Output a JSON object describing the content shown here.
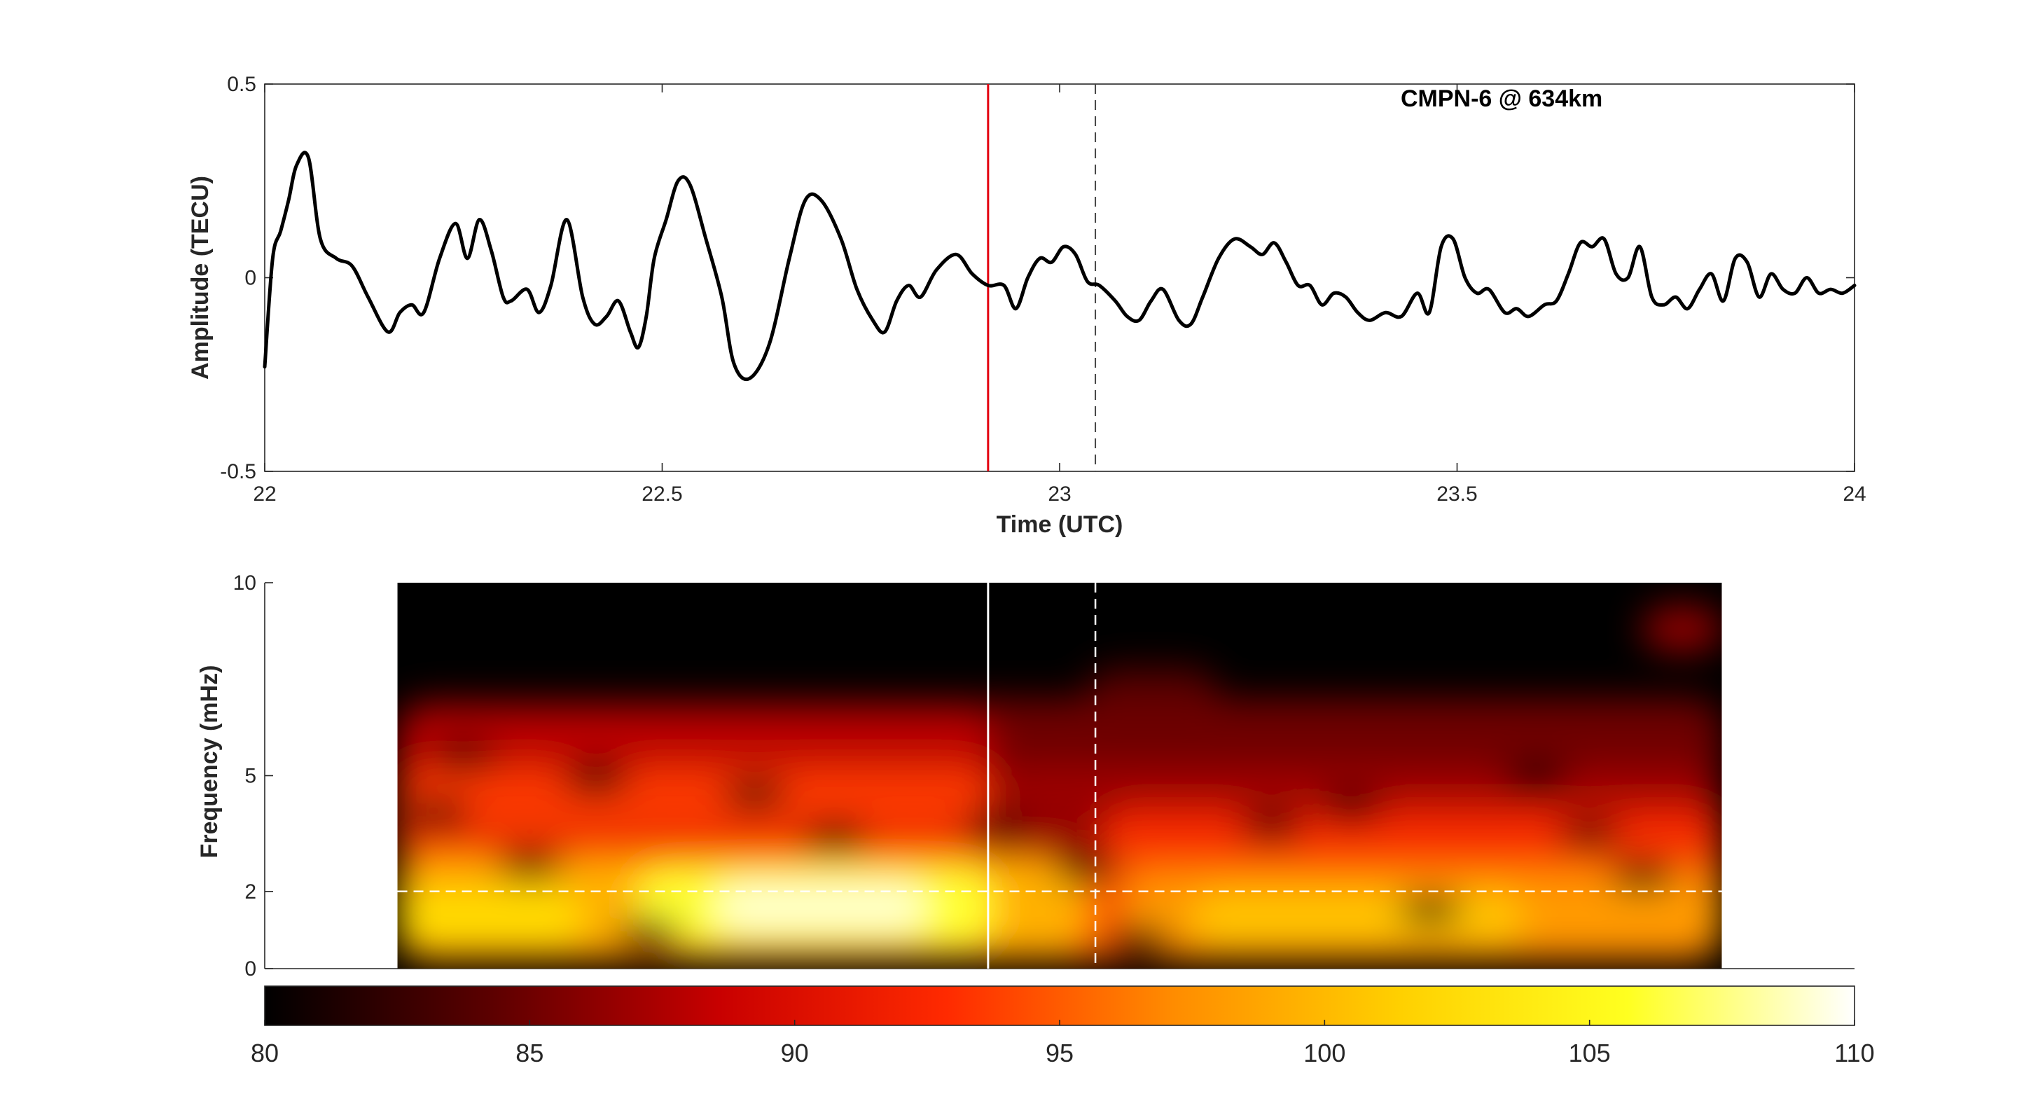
{
  "chart_data": [
    {
      "type": "line",
      "title": "",
      "annotation": "CMPN-6 @  634km",
      "xlabel": "Time (UTC)",
      "ylabel": "Amplitude (TECU)",
      "xlim": [
        22,
        24
      ],
      "ylim": [
        -0.5,
        0.5
      ],
      "xticks": [
        "22",
        "22.5",
        "23",
        "23.5",
        "24"
      ],
      "yticks": [
        "-0.5",
        "0",
        "0.5"
      ],
      "grid": false,
      "series": [
        {
          "color": "#000000",
          "x": [
            22.0,
            22.01,
            22.02,
            22.03,
            22.04,
            22.055,
            22.07,
            22.09,
            22.11,
            22.13,
            22.155,
            22.17,
            22.185,
            22.2,
            22.22,
            22.24,
            22.255,
            22.27,
            22.285,
            22.3,
            22.31,
            22.33,
            22.345,
            22.36,
            22.38,
            22.4,
            22.415,
            22.43,
            22.445,
            22.46,
            22.47,
            22.48,
            22.49,
            22.505,
            22.52,
            22.535,
            22.555,
            22.575,
            22.59,
            22.61,
            22.635,
            22.66,
            22.68,
            22.7,
            22.725,
            22.745,
            22.765,
            22.78,
            22.795,
            22.81,
            22.825,
            22.845,
            22.87,
            22.89,
            22.91,
            22.93,
            22.945,
            22.96,
            22.975,
            22.99,
            23.005,
            23.02,
            23.035,
            23.05,
            23.07,
            23.085,
            23.1,
            23.115,
            23.13,
            23.15,
            23.165,
            23.18,
            23.2,
            23.22,
            23.24,
            23.255,
            23.27,
            23.285,
            23.3,
            23.315,
            23.33,
            23.345,
            23.36,
            23.375,
            23.39,
            23.41,
            23.43,
            23.45,
            23.465,
            23.48,
            23.495,
            23.51,
            23.525,
            23.54,
            23.56,
            23.575,
            23.59,
            23.61,
            23.625,
            23.64,
            23.655,
            23.67,
            23.685,
            23.7,
            23.715,
            23.73,
            23.745,
            23.76,
            23.775,
            23.79,
            23.805,
            23.82,
            23.835,
            23.85,
            23.865,
            23.88,
            23.895,
            23.91,
            23.925,
            23.94,
            23.955,
            23.97,
            23.985,
            24.0
          ],
          "y": [
            -0.23,
            0.05,
            0.12,
            0.2,
            0.29,
            0.31,
            0.1,
            0.05,
            0.03,
            -0.05,
            -0.14,
            -0.09,
            -0.07,
            -0.09,
            0.05,
            0.14,
            0.05,
            0.15,
            0.07,
            -0.05,
            -0.06,
            -0.03,
            -0.09,
            -0.02,
            0.15,
            -0.05,
            -0.12,
            -0.1,
            -0.06,
            -0.14,
            -0.18,
            -0.1,
            0.05,
            0.15,
            0.25,
            0.24,
            0.1,
            -0.05,
            -0.22,
            -0.26,
            -0.17,
            0.05,
            0.2,
            0.2,
            0.1,
            -0.03,
            -0.11,
            -0.14,
            -0.06,
            -0.02,
            -0.05,
            0.02,
            0.06,
            0.01,
            -0.02,
            -0.02,
            -0.08,
            0.0,
            0.05,
            0.04,
            0.08,
            0.06,
            -0.01,
            -0.02,
            -0.06,
            -0.1,
            -0.11,
            -0.06,
            -0.03,
            -0.11,
            -0.12,
            -0.05,
            0.05,
            0.1,
            0.08,
            0.06,
            0.09,
            0.04,
            -0.02,
            -0.02,
            -0.07,
            -0.04,
            -0.05,
            -0.09,
            -0.11,
            -0.09,
            -0.1,
            -0.04,
            -0.09,
            0.08,
            0.1,
            0.0,
            -0.04,
            -0.03,
            -0.09,
            -0.08,
            -0.1,
            -0.07,
            -0.06,
            0.01,
            0.09,
            0.08,
            0.1,
            0.01,
            0.0,
            0.08,
            -0.05,
            -0.07,
            -0.05,
            -0.08,
            -0.03,
            0.01,
            -0.06,
            0.05,
            0.04,
            -0.05,
            0.01,
            -0.03,
            -0.04,
            0.0,
            -0.04,
            -0.03,
            -0.04,
            -0.02
          ]
        }
      ],
      "vlines": [
        {
          "x": 22.91,
          "color": "#e3000f",
          "style": "solid"
        },
        {
          "x": 23.045,
          "color": "#444444",
          "style": "dashed"
        }
      ]
    },
    {
      "type": "heatmap",
      "xlabel": "",
      "ylabel": "Frequency (mHz)",
      "xlim": [
        22,
        24
      ],
      "ylim": [
        0,
        10
      ],
      "data_xrange": [
        22.167,
        23.833
      ],
      "yticks": [
        "0",
        "2",
        "5",
        "10"
      ],
      "ytick_values": [
        0,
        2,
        5,
        10
      ],
      "hline": {
        "y": 2,
        "color": "#ffffff",
        "style": "dashed"
      },
      "vlines": [
        {
          "x": 22.91,
          "color": "#ffffff",
          "style": "solid"
        },
        {
          "x": 23.045,
          "color": "#ffffff",
          "style": "dashed"
        }
      ],
      "colormap": "hot",
      "colorbar": {
        "location": "bottom",
        "range": [
          80,
          110
        ],
        "ticks": [
          "80",
          "85",
          "90",
          "95",
          "100",
          "105",
          "110"
        ],
        "colors": [
          "#000000",
          "#5c0000",
          "#c80000",
          "#ff2a00",
          "#ff8c00",
          "#ffd000",
          "#ffff20",
          "#ffffff"
        ]
      }
    }
  ]
}
